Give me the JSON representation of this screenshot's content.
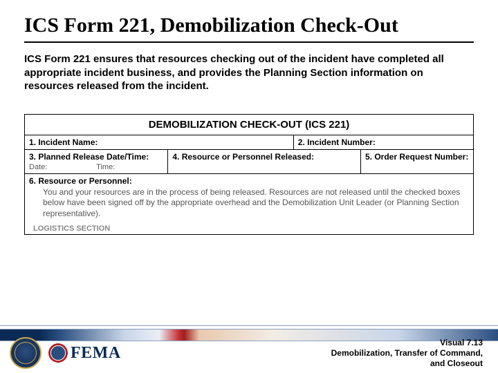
{
  "slide": {
    "title": "ICS Form 221, Demobilization Check-Out",
    "intro": "ICS Form 221 ensures that resources checking out of the incident have completed all appropriate incident business, and provides the Planning Section information on resources released from the incident."
  },
  "form": {
    "header": "DEMOBILIZATION CHECK-OUT (ICS 221)",
    "field1": "1. Incident Name:",
    "field2": "2. Incident Number:",
    "field3": "3. Planned Release Date/Time:",
    "field3_date": "Date:",
    "field3_time": "Time:",
    "field4": "4. Resource or Personnel Released:",
    "field5": "5. Order Request Number:",
    "field6": "6. Resource or Personnel:",
    "field6_body": "You and your resources are in the process of being released. Resources are not released until the checked boxes below have been signed off by the appropriate overhead and the Demobilization Unit Leader (or Planning Section representative).",
    "logistics": "LOGISTICS SECTION"
  },
  "footer": {
    "visual": "Visual 7.13",
    "line2": "Demobilization, Transfer of Command,",
    "line3": "and Closeout",
    "fema": "FEMA"
  },
  "colors": {
    "rule": "#000000",
    "band_navy": "#0a2a55",
    "band_red": "#b02020",
    "gold": "#c9a64a"
  }
}
